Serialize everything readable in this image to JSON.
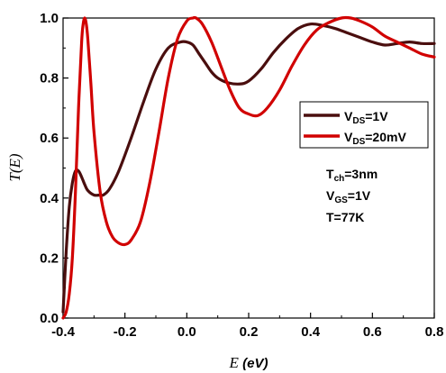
{
  "chart_data": {
    "type": "line",
    "xlabel": "E (eV)",
    "xlabel_var": "E",
    "xlabel_unit": "(eV)",
    "ylabel": "T(E)",
    "xlim": [
      -0.4,
      0.8
    ],
    "ylim": [
      0.0,
      1.0
    ],
    "xticks": [
      "-0.4",
      "-0.2",
      "0.0",
      "0.2",
      "0.4",
      "0.6",
      "0.8"
    ],
    "yticks": [
      "0.0",
      "0.2",
      "0.4",
      "0.6",
      "0.8",
      "1.0"
    ],
    "grid": false,
    "legend_position": "right",
    "series": [
      {
        "name": "VDS=1V",
        "name_parts": {
          "main": "V",
          "sub": "DS",
          "rest": "=1V"
        },
        "color": "#4a0e0e",
        "x": [
          -0.4,
          -0.39,
          -0.38,
          -0.37,
          -0.36,
          -0.35,
          -0.34,
          -0.33,
          -0.32,
          -0.3,
          -0.28,
          -0.27,
          -0.25,
          -0.22,
          -0.18,
          -0.14,
          -0.1,
          -0.06,
          -0.02,
          0.0,
          0.02,
          0.04,
          0.06,
          0.08,
          0.1,
          0.13,
          0.17,
          0.2,
          0.24,
          0.28,
          0.32,
          0.36,
          0.4,
          0.44,
          0.48,
          0.52,
          0.56,
          0.6,
          0.64,
          0.68,
          0.72,
          0.76,
          0.8
        ],
        "y": [
          0.02,
          0.22,
          0.37,
          0.45,
          0.49,
          0.49,
          0.47,
          0.445,
          0.425,
          0.41,
          0.41,
          0.41,
          0.43,
          0.49,
          0.6,
          0.72,
          0.83,
          0.9,
          0.92,
          0.92,
          0.91,
          0.88,
          0.85,
          0.82,
          0.8,
          0.785,
          0.78,
          0.79,
          0.83,
          0.885,
          0.93,
          0.965,
          0.98,
          0.975,
          0.965,
          0.95,
          0.935,
          0.92,
          0.91,
          0.915,
          0.92,
          0.915,
          0.915
        ]
      },
      {
        "name": "VDS=20mV",
        "name_parts": {
          "main": "V",
          "sub": "DS",
          "rest": "=20mV"
        },
        "color": "#d10000",
        "x": [
          -0.4,
          -0.39,
          -0.38,
          -0.37,
          -0.36,
          -0.35,
          -0.34,
          -0.335,
          -0.33,
          -0.325,
          -0.32,
          -0.31,
          -0.3,
          -0.28,
          -0.26,
          -0.24,
          -0.22,
          -0.2,
          -0.18,
          -0.15,
          -0.12,
          -0.09,
          -0.06,
          -0.03,
          0.0,
          0.02,
          0.03,
          0.05,
          0.08,
          0.11,
          0.14,
          0.17,
          0.2,
          0.23,
          0.26,
          0.3,
          0.34,
          0.38,
          0.42,
          0.46,
          0.5,
          0.53,
          0.56,
          0.6,
          0.64,
          0.68,
          0.72,
          0.76,
          0.8
        ],
        "y": [
          0.0,
          0.02,
          0.08,
          0.2,
          0.42,
          0.7,
          0.92,
          0.98,
          1.0,
          0.98,
          0.93,
          0.78,
          0.62,
          0.42,
          0.32,
          0.27,
          0.25,
          0.245,
          0.26,
          0.32,
          0.45,
          0.62,
          0.8,
          0.93,
          0.99,
          1.0,
          1.0,
          0.98,
          0.92,
          0.84,
          0.76,
          0.7,
          0.68,
          0.675,
          0.7,
          0.76,
          0.84,
          0.91,
          0.96,
          0.985,
          1.0,
          1.0,
          0.99,
          0.97,
          0.94,
          0.92,
          0.9,
          0.88,
          0.87
        ]
      }
    ],
    "annotations": [
      {
        "main": "T",
        "sub": "ch",
        "rest": "=3nm"
      },
      {
        "main": "V",
        "sub": "GS",
        "rest": "=1V"
      },
      {
        "main": "T=77K",
        "sub": "",
        "rest": ""
      }
    ]
  }
}
